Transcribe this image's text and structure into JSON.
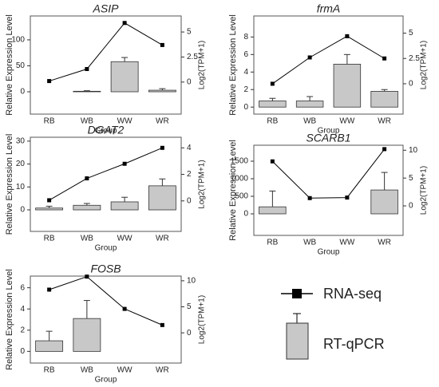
{
  "chart_data": [
    {
      "type": "bar",
      "title": "ASIP",
      "xlabel": "Group",
      "ylabel": "Relative Expression Level",
      "y2label": "Log2(TPM+1)",
      "categories": [
        "RB",
        "WB",
        "WW",
        "WR"
      ],
      "series": [
        {
          "values": [
            0,
            1,
            58,
            3
          ],
          "errors": [
            0,
            1,
            8,
            3
          ],
          "color": "#c8c8c8"
        },
        {
          "values": [
            0.1,
            1.3,
            5.9,
            3.7
          ],
          "axis": "y2",
          "color": "#000000"
        }
      ],
      "ylim": [
        -43,
        146
      ],
      "yticks": [
        0,
        50,
        100
      ],
      "y2lim": [
        -3.2,
        6.6
      ],
      "y2ticks": [
        0,
        2.5,
        5
      ]
    },
    {
      "type": "bar",
      "title": "frmA",
      "xlabel": "Group",
      "ylabel": "Relative Expression Level",
      "y2label": "Log2(TPM+1)",
      "categories": [
        "RB",
        "WB",
        "WW",
        "WR"
      ],
      "series": [
        {
          "values": [
            0.7,
            0.7,
            4.9,
            1.8
          ],
          "errors": [
            0.3,
            0.5,
            1.1,
            0.2
          ],
          "color": "#c8c8c8"
        },
        {
          "values": [
            0,
            2.6,
            4.7,
            2.5
          ],
          "axis": "y2",
          "color": "#000000"
        }
      ],
      "ylim": [
        -0.8,
        10.4
      ],
      "yticks": [
        0,
        2,
        4,
        6,
        8
      ],
      "y2lim": [
        -3.0,
        6.7
      ],
      "y2ticks": [
        0,
        2.5,
        5
      ]
    },
    {
      "type": "bar",
      "title": "DGAT2",
      "xlabel": "Group",
      "ylabel": "Relative Expression Level",
      "y2label": "Log2(TPM+1)",
      "categories": [
        "RB",
        "WB",
        "WW",
        "WR"
      ],
      "series": [
        {
          "values": [
            0.8,
            2,
            3.5,
            10.5
          ],
          "errors": [
            0.8,
            0.8,
            2,
            3
          ],
          "color": "#c8c8c8"
        },
        {
          "values": [
            0.05,
            1.7,
            2.8,
            4.0
          ],
          "axis": "y2",
          "color": "#000000"
        }
      ],
      "ylim": [
        -9.4,
        31.7
      ],
      "yticks": [
        0,
        10,
        20,
        30
      ],
      "y2lim": [
        -2.3,
        4.8
      ],
      "y2ticks": [
        0,
        2,
        4
      ]
    },
    {
      "type": "bar",
      "title": "SCARB1",
      "xlabel": "Group",
      "ylabel": "Relative Expression Level",
      "y2label": "Log2(TPM+1)",
      "categories": [
        "RB",
        "WB",
        "WW",
        "WR"
      ],
      "series": [
        {
          "values": [
            200,
            0,
            0,
            680
          ],
          "errors": [
            450,
            0,
            0,
            500
          ],
          "color": "#c8c8c8"
        },
        {
          "values": [
            8,
            1.4,
            1.5,
            10.2
          ],
          "axis": "y2",
          "color": "#000000"
        }
      ],
      "ylim": [
        -614,
        1955
      ],
      "yticks": [
        0,
        500,
        1000,
        1500
      ],
      "y2lim": [
        -5.3,
        10.9
      ],
      "y2ticks": [
        0,
        5,
        10
      ]
    },
    {
      "type": "bar",
      "title": "FOSB",
      "xlabel": "Group",
      "ylabel": "Relative Expression Level",
      "y2label": "Log2(TPM+1)",
      "categories": [
        "RB",
        "WB",
        "WW",
        "WR"
      ],
      "series": [
        {
          "values": [
            1,
            3.1,
            0,
            0
          ],
          "errors": [
            0.9,
            1.7,
            0,
            0
          ],
          "color": "#c8c8c8"
        },
        {
          "values": [
            8.3,
            10.8,
            4.6,
            1.5
          ],
          "axis": "y2",
          "color": "#000000"
        }
      ],
      "ylim": [
        -1.1,
        7.1
      ],
      "yticks": [
        0,
        2,
        4,
        6
      ],
      "y2lim": [
        -5.8,
        10.9
      ],
      "y2ticks": [
        0,
        5,
        10
      ]
    }
  ],
  "legend": [
    "RNA-seq",
    "RT-qPCR"
  ]
}
